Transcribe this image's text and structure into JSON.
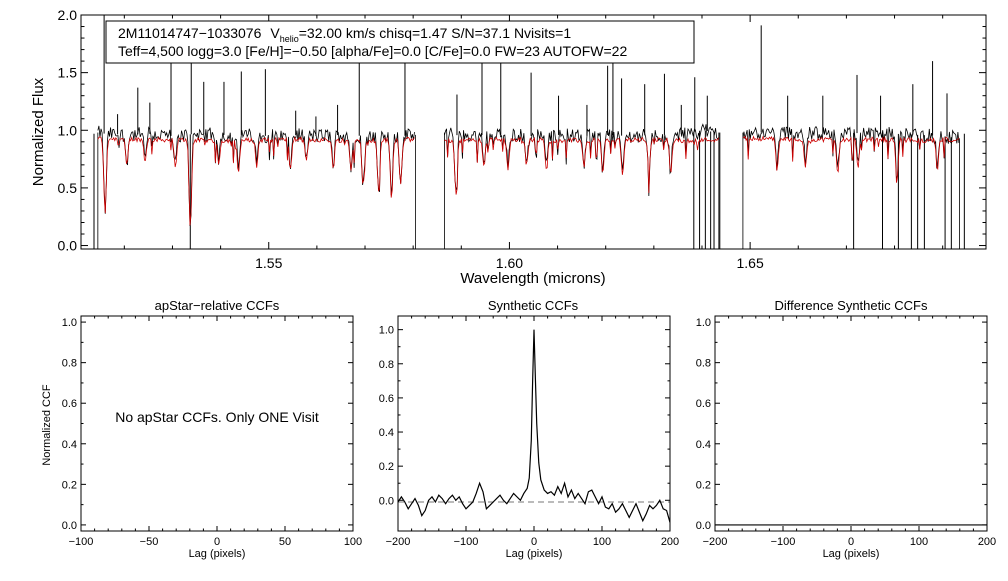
{
  "spectrum_panel": {
    "info_line1_star": "2M11014747−1033076",
    "info_vhelio_v": "V",
    "info_vhelio_sub": "helio",
    "info_line1_rest": "=32.00 km/s  chisq=1.47  S/N=37.1  Nvisits=1",
    "info_line2": "Teff=4,500 logg=3.0 [Fe/H]=−0.50 [alpha/Fe]=0.0 [C/Fe]=0.0 FW=23 AUTOFW=22",
    "xlabel": "Wavelength (microns)",
    "ylabel": "Normalized Flux"
  },
  "ccf_panels": {
    "apstar": {
      "title": "apStar−relative CCFs",
      "xlabel": "Lag (pixels)",
      "ylabel": "Normalized CCF",
      "message": "No apStar CCFs.  Only ONE Visit"
    },
    "synthetic": {
      "title": "Synthetic CCFs",
      "xlabel": "Lag (pixels)"
    },
    "difference": {
      "title": "Difference Synthetic CCFs",
      "xlabel": "Lag (pixels)"
    }
  },
  "colors": {
    "observed": "#000000",
    "model": "#cc0000",
    "zero_line": "#777777"
  },
  "chart_data": [
    {
      "type": "line",
      "title": "",
      "xlabel": "Wavelength (microns)",
      "ylabel": "Normalized Flux",
      "xlim": [
        1.511,
        1.699
      ],
      "ylim": [
        -0.03,
        2.0
      ],
      "xticks": [
        "1.55",
        "1.60",
        "1.65"
      ],
      "yticks": [
        "0.0",
        "0.5",
        "1.0",
        "1.5",
        "2.0"
      ],
      "chips": [
        [
          1.5145,
          1.5805
        ],
        [
          1.5865,
          1.6435
        ],
        [
          1.6485,
          1.6935
        ]
      ],
      "continuum_observed": 0.97,
      "continuum_model": 0.92,
      "series": [
        {
          "values": [
            [
              1.5145,
              0.98
            ],
            [
              1.516,
              0.97
            ],
            [
              1.5205,
              0.96
            ],
            [
              1.525,
              0.97
            ],
            [
              1.53,
              0.95
            ],
            [
              1.535,
              0.97
            ],
            [
              1.54,
              0.96
            ],
            [
              1.545,
              0.96
            ],
            [
              1.55,
              0.95
            ],
            [
              1.555,
              0.96
            ],
            [
              1.56,
              0.95
            ],
            [
              1.565,
              0.96
            ],
            [
              1.57,
              0.95
            ],
            [
              1.575,
              0.94
            ],
            [
              1.5805,
              0.96
            ],
            [
              1.5865,
              0.98
            ],
            [
              1.59,
              0.95
            ],
            [
              1.595,
              0.96
            ],
            [
              1.6,
              0.96
            ],
            [
              1.605,
              0.95
            ],
            [
              1.61,
              0.96
            ],
            [
              1.615,
              0.95
            ],
            [
              1.62,
              0.96
            ],
            [
              1.625,
              0.95
            ],
            [
              1.63,
              0.96
            ],
            [
              1.635,
              0.96
            ],
            [
              1.64,
              1.0
            ],
            [
              1.6435,
              0.98
            ],
            [
              1.6485,
              0.98
            ],
            [
              1.655,
              0.98
            ],
            [
              1.66,
              0.98
            ],
            [
              1.665,
              0.97
            ],
            [
              1.67,
              0.98
            ],
            [
              1.675,
              0.97
            ],
            [
              1.68,
              0.97
            ],
            [
              1.685,
              0.96
            ],
            [
              1.69,
              0.95
            ],
            [
              1.6935,
              0.93
            ]
          ]
        },
        {
          "values": [
            [
              1.5145,
              0.93
            ],
            [
              1.525,
              0.92
            ],
            [
              1.54,
              0.91
            ],
            [
              1.555,
              0.92
            ],
            [
              1.57,
              0.91
            ],
            [
              1.5795,
              0.92
            ],
            [
              1.5875,
              0.91
            ],
            [
              1.6,
              0.92
            ],
            [
              1.615,
              0.91
            ],
            [
              1.63,
              0.92
            ],
            [
              1.6365,
              0.91
            ],
            [
              1.6495,
              0.93
            ],
            [
              1.66,
              0.92
            ],
            [
              1.675,
              0.92
            ],
            [
              1.69,
              0.91
            ]
          ]
        }
      ],
      "absorption_features": [
        [
          1.516,
          0.3
        ],
        [
          1.5205,
          0.75
        ],
        [
          1.5243,
          0.8
        ],
        [
          1.5306,
          0.74
        ],
        [
          1.5337,
          0.2
        ],
        [
          1.5396,
          0.78
        ],
        [
          1.5437,
          0.7
        ],
        [
          1.5475,
          0.76
        ],
        [
          1.5545,
          0.72
        ],
        [
          1.5578,
          0.8
        ],
        [
          1.5634,
          0.74
        ],
        [
          1.5671,
          0.72
        ],
        [
          1.5696,
          0.58
        ],
        [
          1.5728,
          0.55
        ],
        [
          1.5755,
          0.46
        ],
        [
          1.5774,
          0.6
        ],
        [
          1.5889,
          0.5
        ],
        [
          1.5947,
          0.76
        ],
        [
          1.5997,
          0.72
        ],
        [
          1.6036,
          0.78
        ],
        [
          1.6077,
          0.72
        ],
        [
          1.6155,
          0.76
        ],
        [
          1.6194,
          0.7
        ],
        [
          1.6235,
          0.66
        ],
        [
          1.629,
          0.72
        ],
        [
          1.6335,
          0.68
        ],
        [
          1.6556,
          0.72
        ],
        [
          1.6615,
          0.74
        ],
        [
          1.6682,
          0.7
        ],
        [
          1.6724,
          0.74
        ],
        [
          1.6805,
          0.6
        ],
        [
          1.6889,
          0.72
        ]
      ],
      "emission_spikes": [
        [
          1.5158,
          2.0
        ],
        [
          1.5186,
          1.14
        ],
        [
          1.5228,
          1.37
        ],
        [
          1.5253,
          1.24
        ],
        [
          1.5297,
          1.63
        ],
        [
          1.5339,
          1.92
        ],
        [
          1.5365,
          1.42
        ],
        [
          1.5407,
          1.42
        ],
        [
          1.5443,
          1.51
        ],
        [
          1.5493,
          1.53
        ],
        [
          1.5556,
          1.17
        ],
        [
          1.5598,
          1.12
        ],
        [
          1.5643,
          1.22
        ],
        [
          1.5688,
          1.8
        ],
        [
          1.5783,
          1.68
        ],
        [
          1.5891,
          1.31
        ],
        [
          1.5943,
          1.67
        ],
        [
          1.5982,
          1.67
        ],
        [
          1.6045,
          1.5
        ],
        [
          1.6102,
          1.3
        ],
        [
          1.6161,
          1.22
        ],
        [
          1.6204,
          1.56
        ],
        [
          1.6215,
          1.8
        ],
        [
          1.6233,
          1.45
        ],
        [
          1.6281,
          1.4
        ],
        [
          1.6322,
          1.49
        ],
        [
          1.6357,
          1.22
        ],
        [
          1.6385,
          1.46
        ],
        [
          1.6411,
          1.3
        ],
        [
          1.6523,
          1.91
        ],
        [
          1.6578,
          1.3
        ],
        [
          1.6651,
          1.3
        ],
        [
          1.6722,
          1.48
        ],
        [
          1.6771,
          1.3
        ],
        [
          1.6838,
          1.4
        ],
        [
          1.6879,
          1.6
        ],
        [
          1.6909,
          1.32
        ]
      ],
      "dropouts": [
        1.5137,
        1.5337,
        1.6383,
        1.6395,
        1.6407,
        1.6418,
        1.6425,
        1.6437,
        1.6715,
        1.6775,
        1.6808,
        1.6835,
        1.6848,
        1.6862,
        1.6905,
        1.6918,
        1.6945
      ]
    },
    {
      "type": "line",
      "title": "apStar−relative CCFs",
      "xlabel": "Lag (pixels)",
      "ylabel": "Normalized CCF",
      "xlim": [
        -100,
        100
      ],
      "ylim": [
        -0.03,
        1.03
      ],
      "xticks": [
        "−100",
        "−50",
        "0",
        "50",
        "100"
      ],
      "yticks": [
        "0.0",
        "0.2",
        "0.4",
        "0.6",
        "0.8",
        "1.0"
      ],
      "series": []
    },
    {
      "type": "line",
      "title": "Synthetic CCFs",
      "xlabel": "Lag (pixels)",
      "ylabel": "",
      "xlim": [
        -200,
        200
      ],
      "ylim": [
        -0.18,
        1.08
      ],
      "xticks": [
        "−200",
        "−100",
        "0",
        "100",
        "200"
      ],
      "yticks": [
        "0.0",
        "0.2",
        "0.4",
        "0.6",
        "0.8",
        "1.0"
      ],
      "series": [
        {
          "values": [
            [
              -200,
              -0.01
            ],
            [
              -195,
              0.02
            ],
            [
              -190,
              -0.01
            ],
            [
              -185,
              -0.05
            ],
            [
              -180,
              -0.02
            ],
            [
              -175,
              0.01
            ],
            [
              -170,
              -0.03
            ],
            [
              -165,
              -0.09
            ],
            [
              -160,
              -0.06
            ],
            [
              -155,
              0.0
            ],
            [
              -150,
              0.02
            ],
            [
              -145,
              -0.01
            ],
            [
              -140,
              0.03
            ],
            [
              -135,
              0.01
            ],
            [
              -130,
              -0.02
            ],
            [
              -125,
              0.01
            ],
            [
              -120,
              0.03
            ],
            [
              -115,
              0.0
            ],
            [
              -110,
              0.02
            ],
            [
              -105,
              -0.02
            ],
            [
              -100,
              -0.05
            ],
            [
              -95,
              -0.03
            ],
            [
              -90,
              -0.01
            ],
            [
              -85,
              0.04
            ],
            [
              -80,
              0.1
            ],
            [
              -75,
              0.05
            ],
            [
              -70,
              -0.05
            ],
            [
              -65,
              -0.03
            ],
            [
              -60,
              -0.01
            ],
            [
              -55,
              0.01
            ],
            [
              -50,
              0.03
            ],
            [
              -45,
              0.0
            ],
            [
              -40,
              -0.02
            ],
            [
              -35,
              0.01
            ],
            [
              -30,
              0.04
            ],
            [
              -25,
              0.02
            ],
            [
              -20,
              0.0
            ],
            [
              -15,
              0.04
            ],
            [
              -10,
              0.07
            ],
            [
              -7,
              0.13
            ],
            [
              -4,
              0.35
            ],
            [
              -2,
              0.7
            ],
            [
              0,
              1.0
            ],
            [
              2,
              0.72
            ],
            [
              4,
              0.45
            ],
            [
              7,
              0.22
            ],
            [
              10,
              0.12
            ],
            [
              15,
              0.06
            ],
            [
              20,
              0.04
            ],
            [
              25,
              0.05
            ],
            [
              30,
              0.03
            ],
            [
              35,
              0.08
            ],
            [
              40,
              0.04
            ],
            [
              45,
              0.1
            ],
            [
              50,
              0.02
            ],
            [
              55,
              0.06
            ],
            [
              60,
              0.01
            ],
            [
              65,
              0.04
            ],
            [
              70,
              0.01
            ],
            [
              75,
              -0.02
            ],
            [
              80,
              0.05
            ],
            [
              85,
              0.06
            ],
            [
              90,
              0.02
            ],
            [
              95,
              -0.02
            ],
            [
              100,
              0.02
            ],
            [
              105,
              -0.04
            ],
            [
              110,
              -0.05
            ],
            [
              115,
              -0.02
            ],
            [
              120,
              -0.07
            ],
            [
              125,
              -0.05
            ],
            [
              130,
              -0.02
            ],
            [
              135,
              -0.06
            ],
            [
              140,
              -0.1
            ],
            [
              145,
              -0.06
            ],
            [
              150,
              -0.02
            ],
            [
              155,
              -0.07
            ],
            [
              160,
              -0.12
            ],
            [
              165,
              -0.08
            ],
            [
              170,
              -0.03
            ],
            [
              175,
              -0.05
            ],
            [
              180,
              -0.03
            ],
            [
              185,
              0.0
            ],
            [
              190,
              -0.05
            ],
            [
              195,
              -0.06
            ],
            [
              200,
              -0.13
            ]
          ]
        },
        {
          "values": [
            [
              -200,
              -0.01
            ],
            [
              200,
              -0.01
            ]
          ]
        }
      ]
    },
    {
      "type": "line",
      "title": "Difference Synthetic CCFs",
      "xlabel": "Lag (pixels)",
      "ylabel": "",
      "xlim": [
        -200,
        200
      ],
      "ylim": [
        -0.03,
        1.03
      ],
      "xticks": [
        "−200",
        "−100",
        "0",
        "100",
        "200"
      ],
      "yticks": [
        "0.0",
        "0.2",
        "0.4",
        "0.6",
        "0.8",
        "1.0"
      ],
      "series": [
        {
          "values": [
            [
              -200,
              0.0
            ],
            [
              200,
              0.0
            ]
          ]
        }
      ]
    }
  ]
}
